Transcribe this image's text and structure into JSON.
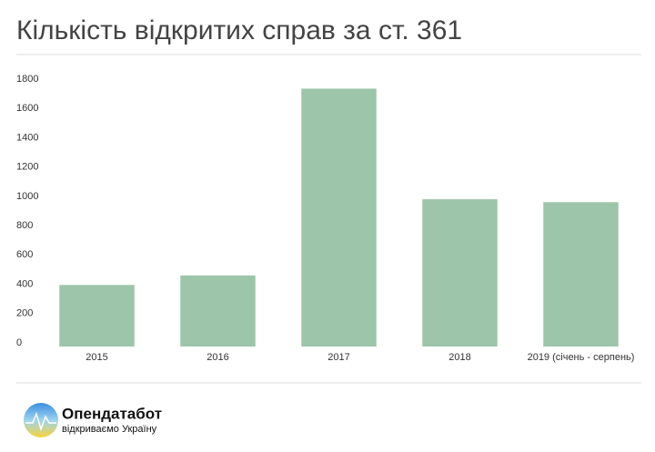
{
  "chart_data": {
    "type": "bar",
    "title": "Кількість відкритих справ за ст. 361",
    "categories": [
      "2015",
      "2016",
      "2017",
      "2018",
      "2019 (січень - серпень)"
    ],
    "values": [
      420,
      485,
      1760,
      1005,
      985
    ],
    "color": "#9cc5a9",
    "ylim": [
      0,
      1800
    ],
    "yticks": [
      0,
      200,
      400,
      600,
      800,
      1000,
      1200,
      1400,
      1600,
      1800
    ],
    "grid": false
  },
  "footer": {
    "brand": "Опендатабот",
    "slogan": "відкриваємо Україну"
  }
}
